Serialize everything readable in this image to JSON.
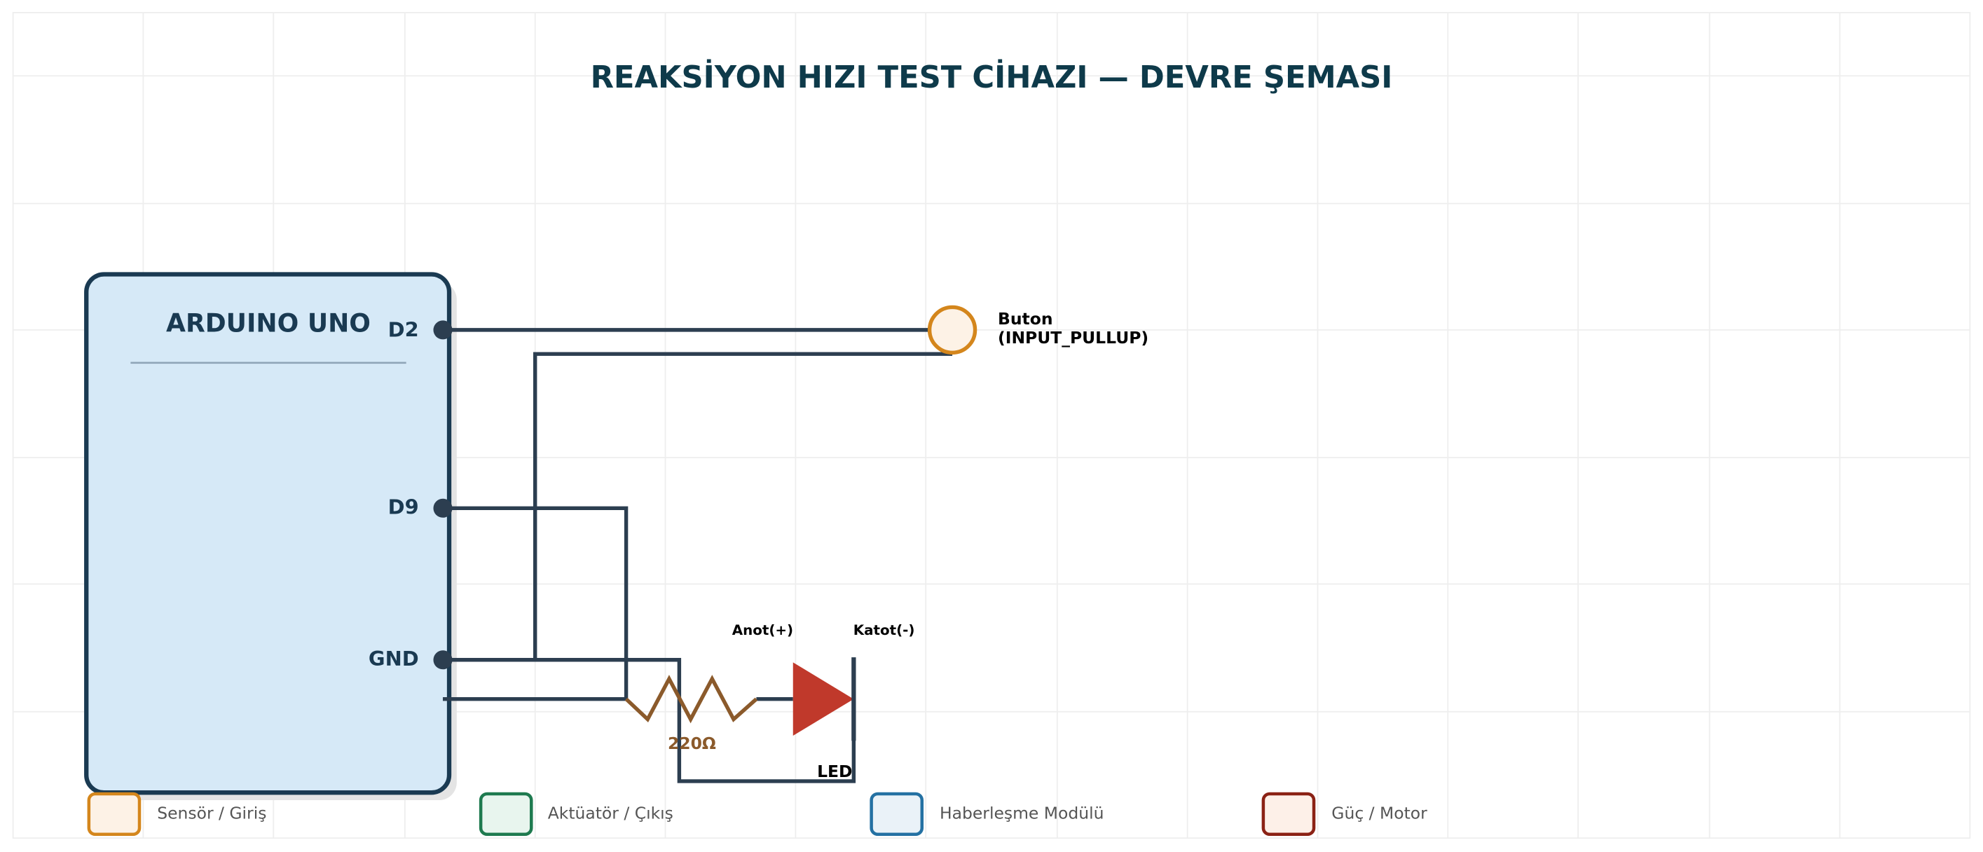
{
  "header": {
    "title": "REAKSİYON HIZI TEST CİHAZI — DEVRE ŞEMASI"
  },
  "board": {
    "label": "ARDUINO UNO",
    "pins": [
      "D2",
      "D9",
      "GND"
    ]
  },
  "components": {
    "button": {
      "label": "Buton",
      "mode": "(INPUT_PULLUP)"
    },
    "resistor": {
      "label": "220Ω"
    },
    "led": {
      "label": "LED",
      "anode": "Anot(+)",
      "cathode": "Katot(-)"
    }
  },
  "legend": [
    "Sensör / Giriş",
    "Aktüatör / Çıkış",
    "Haberleşme Modülü",
    "Güç / Motor"
  ]
}
